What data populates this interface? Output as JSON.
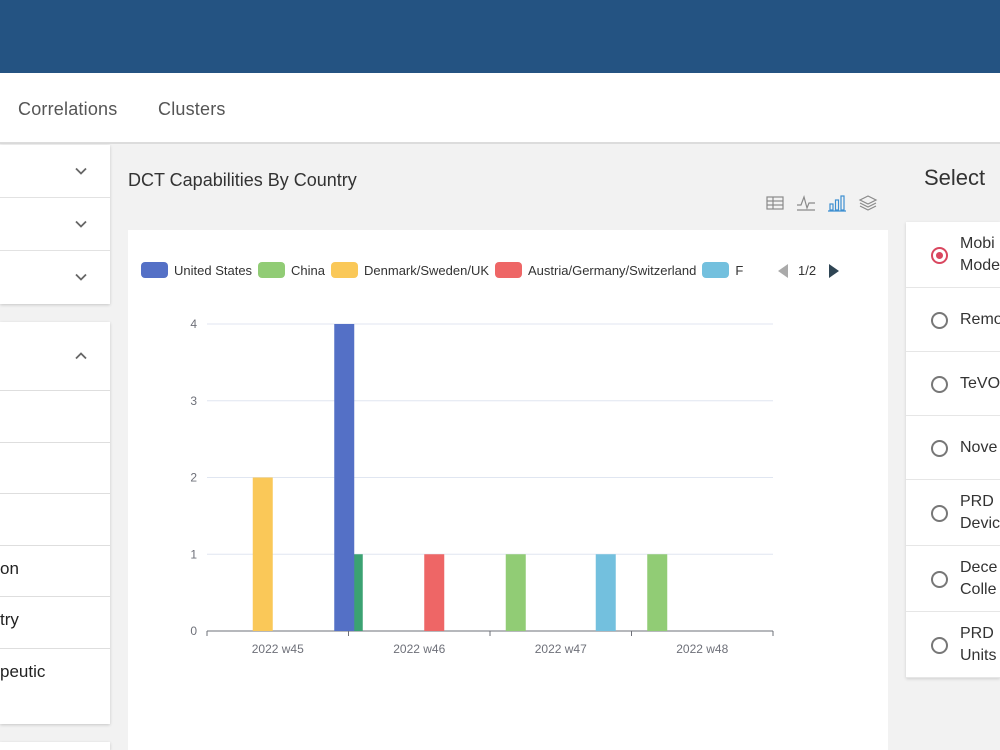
{
  "nav": {
    "links": [
      "Correlations",
      "Clusters"
    ]
  },
  "left_panel": {
    "sub_items": [
      "",
      "",
      "",
      "on",
      "try",
      "peutic"
    ]
  },
  "chart_panel": {
    "title": "DCT Capabilities By Country",
    "toolbox": [
      "table-icon",
      "line-chart-icon",
      "bar-chart-icon",
      "stack-icon"
    ],
    "legend_page": "1/2"
  },
  "chart_data": {
    "type": "bar",
    "categories": [
      "2022 w45",
      "2022 w46",
      "2022 w47",
      "2022 w48"
    ],
    "series": [
      {
        "name": "United States",
        "color": "#5470c6",
        "values": [
          0,
          4,
          0,
          0
        ]
      },
      {
        "name": "China",
        "color": "#91cc75",
        "values": [
          0,
          0,
          1,
          1
        ]
      },
      {
        "name": "Denmark/Sweden/UK",
        "color": "#fac858",
        "values": [
          2,
          0,
          0,
          0
        ]
      },
      {
        "name": "Austria/Germany/Switzerland",
        "color": "#ee6666",
        "values": [
          0,
          1,
          0,
          0
        ]
      },
      {
        "name": "F",
        "color": "#73c0de",
        "values": [
          0,
          0,
          1,
          0
        ]
      },
      {
        "name": "",
        "color": "#3ba272",
        "values": [
          1,
          0,
          0,
          0
        ]
      }
    ],
    "ylim": [
      0,
      4
    ],
    "yticks": [
      0,
      1,
      2,
      3,
      4
    ],
    "grid": true,
    "legend_position": "top"
  },
  "right_panel": {
    "title": "Select",
    "options": [
      {
        "label": "Mobi\nMode",
        "selected": true
      },
      {
        "label": "Remo",
        "selected": false
      },
      {
        "label": "TeVO",
        "selected": false
      },
      {
        "label": "Nove",
        "selected": false
      },
      {
        "label": "PRD\nDevic",
        "selected": false
      },
      {
        "label": "Dece\nColle",
        "selected": false
      },
      {
        "label": "PRD\nUnits",
        "selected": false
      }
    ]
  }
}
